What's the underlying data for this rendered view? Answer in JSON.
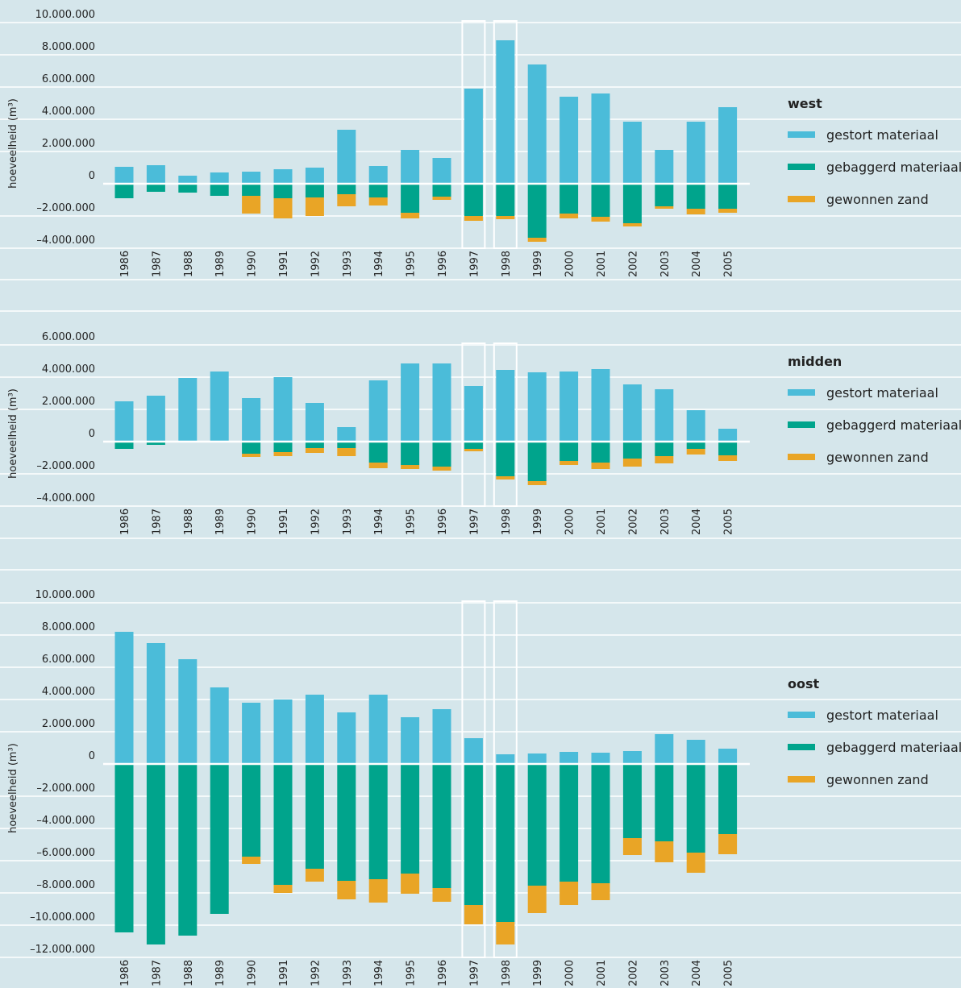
{
  "chart_data": [
    {
      "type": "bar",
      "stacked": true,
      "title": "west",
      "ylabel": "hoeveelheid (m³)",
      "categories": [
        "1986",
        "1987",
        "1988",
        "1989",
        "1990",
        "1991",
        "1992",
        "1993",
        "1994",
        "1995",
        "1996",
        "1997",
        "1998",
        "1999",
        "2000",
        "2001",
        "2002",
        "2003",
        "2004",
        "2005"
      ],
      "series": [
        {
          "name": "gestort materiaal",
          "color": "#4bbcd9",
          "values": [
            1050000,
            1150000,
            500000,
            700000,
            750000,
            900000,
            1000000,
            3350000,
            1100000,
            2100000,
            1600000,
            5900000,
            8900000,
            7400000,
            5400000,
            5600000,
            3850000,
            2100000,
            3850000,
            4750000
          ]
        },
        {
          "name": "gebaggerd materiaal",
          "color": "#00a48c",
          "values": [
            -900000,
            -500000,
            -550000,
            -750000,
            -750000,
            -900000,
            -850000,
            -650000,
            -850000,
            -1800000,
            -800000,
            -2000000,
            -2000000,
            -3350000,
            -1850000,
            -2050000,
            -2450000,
            -1400000,
            -1550000,
            -1550000
          ]
        },
        {
          "name": "gewonnen zand",
          "color": "#e9a526",
          "values": [
            0,
            0,
            0,
            0,
            -1100000,
            -1250000,
            -1150000,
            -750000,
            -500000,
            -350000,
            -200000,
            -300000,
            -200000,
            -250000,
            -300000,
            -300000,
            -200000,
            -150000,
            -350000,
            -250000
          ]
        }
      ],
      "ylim": [
        -4000000,
        10000000
      ],
      "yticks": [
        {
          "value": -4000000,
          "label": "–4.000.000"
        },
        {
          "value": -2000000,
          "label": "–2.000.000"
        },
        0,
        {
          "value": 2000000,
          "label": "2.000.000"
        },
        {
          "value": 4000000,
          "label": "4.000.000"
        },
        {
          "value": 6000000,
          "label": "6.000.000"
        },
        {
          "value": 8000000,
          "label": "8.000.000"
        },
        {
          "value": 10000000,
          "label": "10.000.000"
        }
      ],
      "grid": true
    },
    {
      "type": "bar",
      "stacked": true,
      "title": "midden",
      "ylabel": "hoeveelheid (m³)",
      "categories": [
        "1986",
        "1987",
        "1988",
        "1989",
        "1990",
        "1991",
        "1992",
        "1993",
        "1994",
        "1995",
        "1996",
        "1997",
        "1998",
        "1999",
        "2000",
        "2001",
        "2002",
        "2003",
        "2004",
        "2005"
      ],
      "series": [
        {
          "name": "gestort materiaal",
          "color": "#4bbcd9",
          "values": [
            2500000,
            2850000,
            3950000,
            4350000,
            2700000,
            4000000,
            2400000,
            900000,
            3800000,
            4850000,
            4850000,
            3450000,
            4450000,
            4300000,
            4350000,
            4500000,
            3550000,
            3250000,
            1950000,
            800000
          ]
        },
        {
          "name": "gebaggerd materiaal",
          "color": "#00a48c",
          "values": [
            -450000,
            -200000,
            0,
            0,
            -750000,
            -650000,
            -400000,
            -400000,
            -1300000,
            -1450000,
            -1550000,
            -450000,
            -2150000,
            -2450000,
            -1200000,
            -1300000,
            -1050000,
            -900000,
            -450000,
            -850000
          ]
        },
        {
          "name": "gewonnen zand",
          "color": "#e9a526",
          "values": [
            0,
            0,
            0,
            0,
            -200000,
            -250000,
            -300000,
            -500000,
            -350000,
            -250000,
            -250000,
            -150000,
            -200000,
            -250000,
            -250000,
            -400000,
            -500000,
            -450000,
            -350000,
            -350000
          ]
        }
      ],
      "ylim": [
        -4000000,
        6000000
      ],
      "yticks": [
        {
          "value": -4000000,
          "label": "–4.000.000"
        },
        {
          "value": -2000000,
          "label": "–2.000.000"
        },
        0,
        {
          "value": 2000000,
          "label": "2.000.000"
        },
        {
          "value": 4000000,
          "label": "4.000.000"
        },
        {
          "value": 6000000,
          "label": "6.000.000"
        }
      ],
      "grid": true
    },
    {
      "type": "bar",
      "stacked": true,
      "title": "oost",
      "ylabel": "hoeveelheid (m³)",
      "categories": [
        "1986",
        "1987",
        "1988",
        "1989",
        "1990",
        "1991",
        "1992",
        "1993",
        "1994",
        "1995",
        "1996",
        "1997",
        "1998",
        "1999",
        "2000",
        "2001",
        "2002",
        "2003",
        "2004",
        "2005"
      ],
      "series": [
        {
          "name": "gestort materiaal",
          "color": "#4bbcd9",
          "values": [
            8200000,
            7500000,
            6500000,
            4750000,
            3800000,
            4000000,
            4300000,
            3200000,
            4300000,
            2900000,
            3400000,
            1600000,
            600000,
            650000,
            750000,
            700000,
            800000,
            1850000,
            1500000,
            950000
          ]
        },
        {
          "name": "gebaggerd materiaal",
          "color": "#00a48c",
          "values": [
            -10450000,
            -11200000,
            -10650000,
            -9300000,
            -5750000,
            -7500000,
            -6500000,
            -7250000,
            -7150000,
            -6800000,
            -7700000,
            -8750000,
            -9800000,
            -7550000,
            -7300000,
            -7400000,
            -4600000,
            -4800000,
            -5500000,
            -4350000
          ]
        },
        {
          "name": "gewonnen zand",
          "color": "#e9a526",
          "values": [
            0,
            0,
            0,
            0,
            -450000,
            -500000,
            -800000,
            -1150000,
            -1450000,
            -1250000,
            -850000,
            -1200000,
            -1400000,
            -1700000,
            -1450000,
            -1050000,
            -1050000,
            -1300000,
            -1250000,
            -1250000
          ]
        }
      ],
      "ylim": [
        -12000000,
        10000000
      ],
      "yticks": [
        {
          "value": -12000000,
          "label": "–12.000.000"
        },
        {
          "value": -10000000,
          "label": "–10.000.000"
        },
        {
          "value": -8000000,
          "label": "–8.000.000"
        },
        {
          "value": -6000000,
          "label": "–6.000.000"
        },
        {
          "value": -4000000,
          "label": "–4.000.000"
        },
        {
          "value": -2000000,
          "label": "–2.000.000"
        },
        0,
        {
          "value": 2000000,
          "label": "2.000.000"
        },
        {
          "value": 4000000,
          "label": "4.000.000"
        },
        {
          "value": 6000000,
          "label": "6.000.000"
        },
        {
          "value": 8000000,
          "label": "8.000.000"
        },
        {
          "value": 10000000,
          "label": "10.000.000"
        }
      ],
      "grid": true
    }
  ]
}
